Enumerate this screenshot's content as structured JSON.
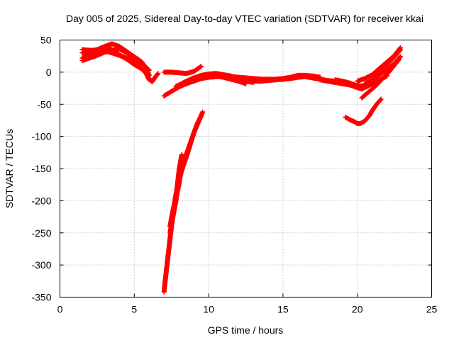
{
  "chart_data": {
    "type": "scatter",
    "title": "Day 005 of 2025, Sidereal Day-to-day VTEC variation (SDTVAR) for receiver kkai",
    "xlabel": "GPS time / hours",
    "ylabel": "SDTVAR / TECUs",
    "xlim": [
      0,
      25
    ],
    "ylim": [
      -350,
      50
    ],
    "xticks": [
      0,
      5,
      10,
      15,
      20,
      25
    ],
    "yticks": [
      50,
      0,
      -50,
      -100,
      -150,
      -200,
      -250,
      -300,
      -350
    ],
    "grid": true,
    "marker": "+",
    "color": "#ff0000",
    "series": [
      {
        "name": "arc-early-high",
        "points": [
          [
            1.5,
            30
          ],
          [
            2.0,
            33
          ],
          [
            2.5,
            35
          ],
          [
            3.0,
            40
          ],
          [
            3.5,
            44
          ],
          [
            4.0,
            40
          ],
          [
            4.5,
            32
          ],
          [
            5.0,
            24
          ],
          [
            5.5,
            14
          ],
          [
            6.0,
            3
          ]
        ]
      },
      {
        "name": "arc-early-band",
        "points": [
          [
            1.5,
            22
          ],
          [
            2.0,
            27
          ],
          [
            2.5,
            30
          ],
          [
            3.0,
            34
          ],
          [
            3.3,
            38
          ],
          [
            3.6,
            33
          ],
          [
            4.0,
            27
          ],
          [
            4.5,
            20
          ],
          [
            5.0,
            12
          ],
          [
            5.5,
            5
          ],
          [
            5.8,
            -2
          ],
          [
            6.0,
            -12
          ]
        ]
      },
      {
        "name": "arc-early-flat",
        "points": [
          [
            1.5,
            35
          ],
          [
            2.0,
            34
          ],
          [
            2.5,
            34
          ],
          [
            3.0,
            33
          ],
          [
            3.5,
            30
          ],
          [
            4.0,
            26
          ],
          [
            4.5,
            22
          ],
          [
            5.0,
            18
          ],
          [
            5.5,
            10
          ]
        ]
      },
      {
        "name": "arc-early-low",
        "points": [
          [
            1.5,
            18
          ],
          [
            2.0,
            22
          ],
          [
            2.5,
            26
          ],
          [
            3.0,
            31
          ],
          [
            3.5,
            34
          ],
          [
            4.0,
            36
          ],
          [
            4.5,
            30
          ],
          [
            5.0,
            24
          ],
          [
            5.5,
            16
          ],
          [
            5.8,
            6
          ],
          [
            6.0,
            -5
          ]
        ]
      },
      {
        "name": "arc-dip",
        "points": [
          [
            5.8,
            -2
          ],
          [
            6.0,
            -10
          ],
          [
            6.2,
            -15
          ],
          [
            6.4,
            -8
          ],
          [
            6.6,
            -2
          ]
        ]
      },
      {
        "name": "arc-mid-flat",
        "points": [
          [
            7.0,
            0
          ],
          [
            7.5,
            0
          ],
          [
            8.0,
            -1
          ],
          [
            8.5,
            -2
          ],
          [
            9.0,
            1
          ],
          [
            9.5,
            9
          ]
        ]
      },
      {
        "name": "arc-mid-rise",
        "points": [
          [
            7.0,
            -37
          ],
          [
            7.5,
            -30
          ],
          [
            8.0,
            -23
          ],
          [
            8.5,
            -18
          ],
          [
            9.0,
            -13
          ],
          [
            9.5,
            -9
          ],
          [
            10.0,
            -5
          ],
          [
            10.5,
            -2
          ]
        ]
      },
      {
        "name": "arc-mid-band1",
        "points": [
          [
            7.8,
            -22
          ],
          [
            8.5,
            -16
          ],
          [
            9.0,
            -12
          ],
          [
            9.5,
            -8
          ],
          [
            10.0,
            -6
          ],
          [
            10.5,
            -6
          ],
          [
            11.0,
            -8
          ],
          [
            11.5,
            -11
          ],
          [
            12.0,
            -14
          ],
          [
            12.5,
            -18
          ]
        ]
      },
      {
        "name": "arc-mid-band2",
        "points": [
          [
            8.0,
            -20
          ],
          [
            8.5,
            -14
          ],
          [
            9.0,
            -9
          ],
          [
            9.5,
            -5
          ],
          [
            10.0,
            -3
          ],
          [
            10.5,
            -2
          ],
          [
            11.0,
            -4
          ],
          [
            11.5,
            -6
          ],
          [
            12.0,
            -10
          ],
          [
            12.5,
            -14
          ],
          [
            13.0,
            -16
          ]
        ]
      },
      {
        "name": "arc-mid-band3",
        "points": [
          [
            8.5,
            -18
          ],
          [
            9.0,
            -14
          ],
          [
            9.5,
            -10
          ],
          [
            10.0,
            -8
          ],
          [
            10.5,
            -7
          ],
          [
            11.0,
            -6
          ],
          [
            11.5,
            -7
          ],
          [
            12.0,
            -8
          ],
          [
            12.5,
            -9
          ],
          [
            13.0,
            -10
          ],
          [
            13.5,
            -11
          ],
          [
            14.0,
            -12
          ]
        ]
      },
      {
        "name": "arc-center",
        "points": [
          [
            11.0,
            -6
          ],
          [
            11.5,
            -7
          ],
          [
            12.0,
            -8
          ],
          [
            12.5,
            -9
          ],
          [
            13.0,
            -10
          ],
          [
            13.5,
            -11
          ],
          [
            14.0,
            -11
          ],
          [
            14.5,
            -11
          ],
          [
            15.0,
            -10
          ],
          [
            15.5,
            -8
          ],
          [
            16.0,
            -5
          ],
          [
            16.5,
            -5
          ],
          [
            17.0,
            -6
          ],
          [
            17.5,
            -8
          ]
        ]
      },
      {
        "name": "arc-center-low",
        "points": [
          [
            13.0,
            -14
          ],
          [
            13.5,
            -14
          ],
          [
            14.0,
            -13
          ],
          [
            14.5,
            -12
          ],
          [
            15.0,
            -11
          ],
          [
            15.5,
            -10
          ],
          [
            16.0,
            -8
          ],
          [
            16.5,
            -7
          ],
          [
            17.0,
            -9
          ],
          [
            17.5,
            -11
          ],
          [
            18.0,
            -13
          ],
          [
            18.5,
            -14
          ]
        ]
      },
      {
        "name": "arc-late",
        "points": [
          [
            17.5,
            -12
          ],
          [
            18.0,
            -14
          ],
          [
            18.5,
            -16
          ],
          [
            19.0,
            -18
          ],
          [
            19.5,
            -20
          ],
          [
            20.0,
            -24
          ],
          [
            20.3,
            -26
          ],
          [
            20.6,
            -23
          ],
          [
            21.0,
            -18
          ],
          [
            21.5,
            -12
          ],
          [
            22.0,
            -6
          ]
        ]
      },
      {
        "name": "arc-late2",
        "points": [
          [
            18.5,
            -12
          ],
          [
            19.0,
            -14
          ],
          [
            19.5,
            -17
          ],
          [
            20.0,
            -21
          ],
          [
            20.5,
            -22
          ],
          [
            21.0,
            -18
          ],
          [
            21.5,
            -12
          ]
        ]
      },
      {
        "name": "arc-deep",
        "points": [
          [
            7.0,
            -342
          ],
          [
            7.1,
            -320
          ],
          [
            7.2,
            -300
          ],
          [
            7.3,
            -280
          ],
          [
            7.4,
            -260
          ],
          [
            7.5,
            -240
          ],
          [
            7.6,
            -222
          ],
          [
            7.7,
            -205
          ],
          [
            7.8,
            -190
          ],
          [
            8.0,
            -170
          ],
          [
            8.2,
            -152
          ],
          [
            8.5,
            -132
          ],
          [
            8.8,
            -110
          ],
          [
            9.0,
            -95
          ],
          [
            9.3,
            -78
          ],
          [
            9.6,
            -62
          ]
        ]
      },
      {
        "name": "arc-deep-inner",
        "points": [
          [
            7.4,
            -250
          ],
          [
            7.6,
            -225
          ],
          [
            7.8,
            -200
          ],
          [
            7.9,
            -185
          ],
          [
            8.0,
            -175
          ],
          [
            8.1,
            -160
          ],
          [
            8.2,
            -150
          ],
          [
            8.3,
            -140
          ],
          [
            8.5,
            -128
          ],
          [
            8.8,
            -108
          ],
          [
            9.2,
            -82
          ],
          [
            9.5,
            -68
          ]
        ]
      },
      {
        "name": "arc-deep-spur",
        "points": [
          [
            7.4,
            -240
          ],
          [
            7.6,
            -215
          ],
          [
            7.8,
            -195
          ],
          [
            7.9,
            -175
          ],
          [
            8.0,
            -155
          ],
          [
            8.1,
            -140
          ],
          [
            8.2,
            -128
          ]
        ]
      },
      {
        "name": "arc-late-dip",
        "points": [
          [
            19.2,
            -70
          ],
          [
            19.5,
            -74
          ],
          [
            19.8,
            -77
          ],
          [
            20.0,
            -80
          ],
          [
            20.2,
            -80
          ],
          [
            20.5,
            -76
          ],
          [
            20.8,
            -68
          ],
          [
            21.0,
            -60
          ],
          [
            21.3,
            -50
          ],
          [
            21.6,
            -42
          ]
        ]
      },
      {
        "name": "arc-late-rise1",
        "points": [
          [
            20.3,
            -40
          ],
          [
            20.7,
            -32
          ],
          [
            21.0,
            -26
          ],
          [
            21.3,
            -20
          ],
          [
            21.6,
            -12
          ],
          [
            22.0,
            -3
          ],
          [
            22.4,
            8
          ],
          [
            22.8,
            20
          ]
        ]
      },
      {
        "name": "arc-late-rise2",
        "points": [
          [
            20.5,
            -18
          ],
          [
            21.0,
            -12
          ],
          [
            21.5,
            -4
          ],
          [
            22.0,
            4
          ],
          [
            22.5,
            14
          ],
          [
            22.9,
            24
          ]
        ]
      },
      {
        "name": "arc-late-rise3",
        "points": [
          [
            21.0,
            -6
          ],
          [
            21.5,
            2
          ],
          [
            22.0,
            12
          ],
          [
            22.5,
            24
          ],
          [
            22.9,
            35
          ]
        ]
      },
      {
        "name": "arc-late-rise4",
        "points": [
          [
            20.0,
            -14
          ],
          [
            20.5,
            -10
          ],
          [
            21.0,
            -4
          ],
          [
            21.5,
            6
          ],
          [
            22.0,
            16
          ],
          [
            22.5,
            26
          ],
          [
            22.9,
            38
          ]
        ]
      }
    ]
  }
}
